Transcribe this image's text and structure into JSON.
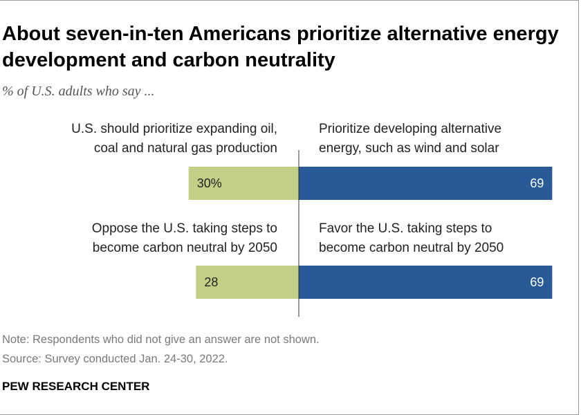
{
  "header": {
    "title": "About seven-in-ten Americans prioritize alternative energy development and carbon neutrality",
    "subtitle": "% of U.S. adults who say ..."
  },
  "footer": {
    "note": "Note: Respondents who did not give an answer are not shown.",
    "source": "Source: Survey conducted Jan. 24-30, 2022.",
    "brand": "PEW RESEARCH CENTER"
  },
  "chart_data": {
    "type": "bar",
    "orientation": "diverging-horizontal",
    "rows": [
      {
        "left_label": [
          "U.S. should prioritize expanding oil,",
          "coal and natural gas production"
        ],
        "left_value": 30,
        "left_text": "30%",
        "right_label": [
          "Prioritize developing alternative",
          "energy, such as wind and solar"
        ],
        "right_value": 69,
        "right_text": "69"
      },
      {
        "left_label": [
          "Oppose the U.S. taking steps to",
          "become carbon neutral by 2050"
        ],
        "left_value": 28,
        "left_text": "28",
        "right_label": [
          "Favor the U.S. taking steps to",
          "become carbon neutral by 2050"
        ],
        "right_value": 69,
        "right_text": "69"
      }
    ],
    "colors": {
      "left": "#c1d086",
      "right": "#275a97",
      "left_text": "#222222",
      "right_text": "#ffffff",
      "axis": "#333333"
    },
    "xlim": [
      0,
      100
    ],
    "grid": false,
    "legend": "none"
  }
}
